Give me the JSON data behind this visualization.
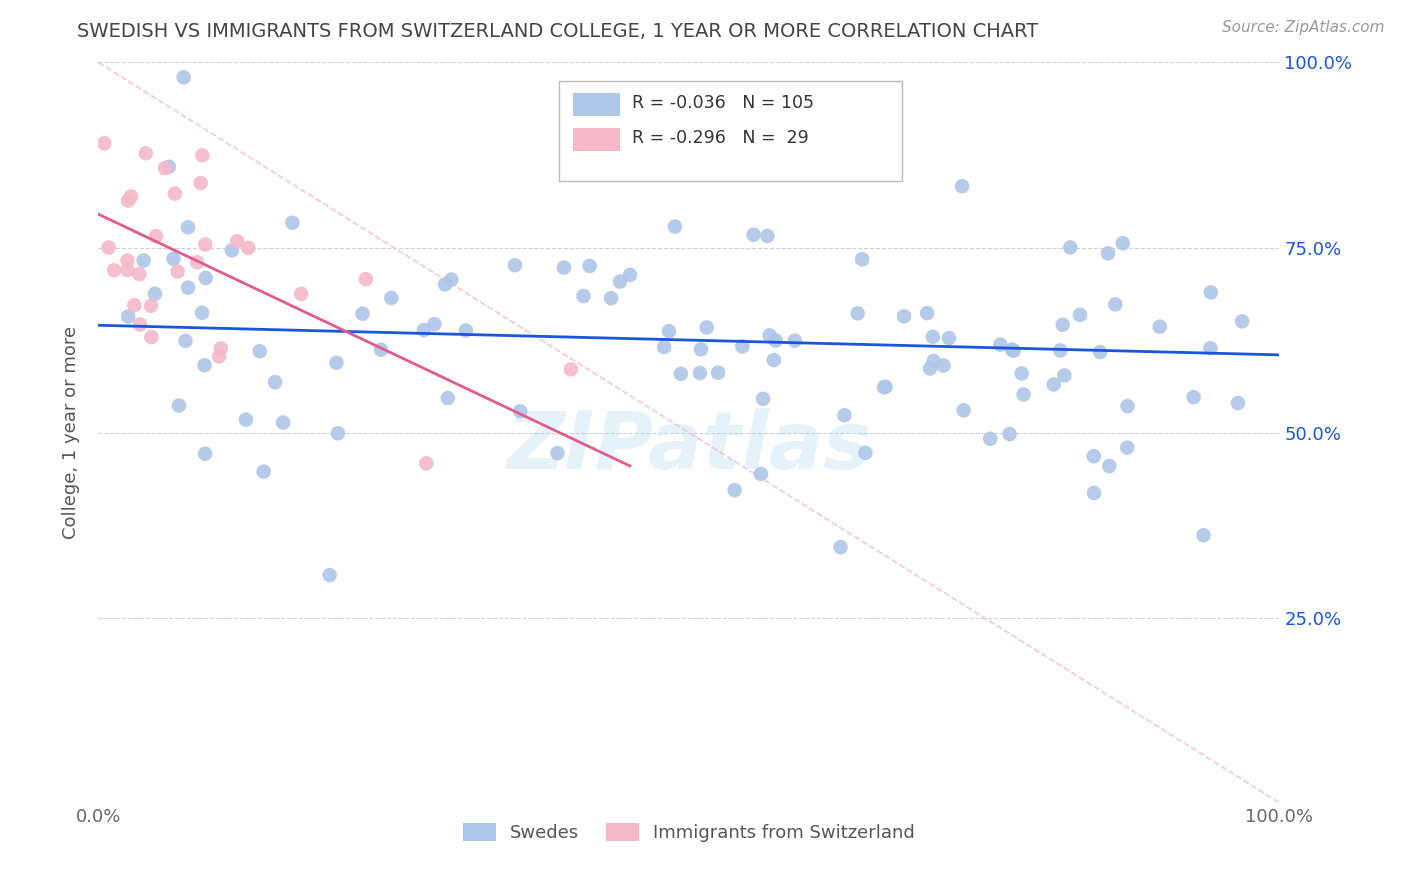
{
  "title": "SWEDISH VS IMMIGRANTS FROM SWITZERLAND COLLEGE, 1 YEAR OR MORE CORRELATION CHART",
  "source_text": "Source: ZipAtlas.com",
  "ylabel": "College, 1 year or more",
  "xlim": [
    0.0,
    1.0
  ],
  "ylim": [
    0.0,
    1.0
  ],
  "blue_R": -0.036,
  "blue_N": 105,
  "pink_R": -0.296,
  "pink_N": 29,
  "blue_color": "#aec6e8",
  "pink_color": "#f4b8c8",
  "blue_line_color": "#1a56db",
  "pink_line_color": "#e05c8a",
  "ref_line_color": "#f4b8c8",
  "watermark": "ZIPatlas",
  "legend_label_blue": "Swedes",
  "legend_label_pink": "Immigrants from Switzerland",
  "blue_line_x0": 0.0,
  "blue_line_y0": 0.645,
  "blue_line_x1": 1.0,
  "blue_line_y1": 0.605,
  "pink_line_x0": 0.0,
  "pink_line_y0": 0.795,
  "pink_line_x1": 0.45,
  "pink_line_y1": 0.455,
  "grid_color": "#d0d0d0",
  "title_color": "#444444",
  "axis_label_color": "#555555",
  "right_tick_color": "#1a56db"
}
